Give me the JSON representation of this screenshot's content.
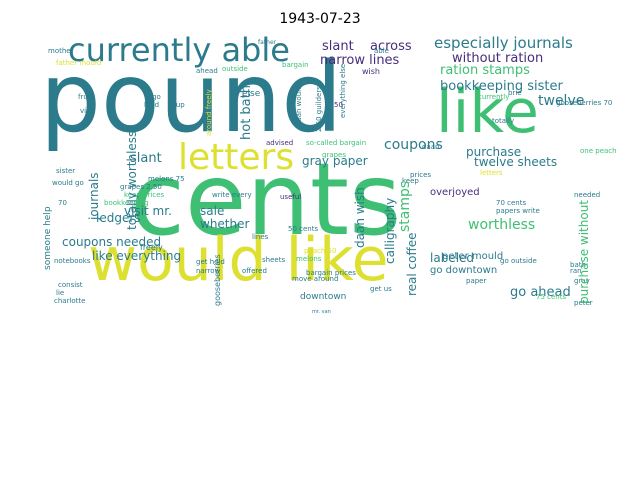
{
  "title": "1943-07-23",
  "palette": {
    "teal": "#2b7b8c",
    "green": "#3fbf74",
    "yellow": "#dde030",
    "purple": "#472d7b",
    "blue": "#3b528b",
    "lime": "#7ad151",
    "cyan": "#21918c",
    "olive": "#b5de2b"
  },
  "words": [
    {
      "text": "pound",
      "color": "#2b7b8c"
    },
    {
      "text": "cents",
      "color": "#3fbf74"
    },
    {
      "text": "would like",
      "color": "#dde030"
    },
    {
      "text": "like",
      "color": "#3fbf74"
    },
    {
      "text": "currently able",
      "color": "#2b7b8c"
    },
    {
      "text": "letters",
      "color": "#dde030"
    },
    {
      "text": "especially journals",
      "color": "#2b7b8c"
    },
    {
      "text": "without ration",
      "color": "#472d7b"
    },
    {
      "text": "ration stamps",
      "color": "#3fbf74"
    },
    {
      "text": "bookkeeping sister",
      "color": "#2b7b8c"
    },
    {
      "text": "slant",
      "color": "#472d7b"
    },
    {
      "text": "across",
      "color": "#472d7b"
    },
    {
      "text": "narrow lines",
      "color": "#472d7b"
    },
    {
      "text": "coupons",
      "color": "#2b7b8c"
    },
    {
      "text": "twelve",
      "color": "#2b7b8c"
    },
    {
      "text": "gray paper",
      "color": "#2b7b8c"
    },
    {
      "text": "twelve sheets",
      "color": "#2b7b8c"
    },
    {
      "text": "purchase",
      "color": "#2b7b8c"
    },
    {
      "text": "overjoyed",
      "color": "#472d7b"
    },
    {
      "text": "worthless",
      "color": "#3fbf74"
    },
    {
      "text": "labeled",
      "color": "#2b7b8c"
    },
    {
      "text": "go ahead",
      "color": "#2b7b8c"
    },
    {
      "text": "go downtown",
      "color": "#2b7b8c"
    },
    {
      "text": "peter mould",
      "color": "#2b7b8c"
    },
    {
      "text": "ledgers",
      "color": "#2b7b8c"
    },
    {
      "text": "visit mr.",
      "color": "#2b7b8c"
    },
    {
      "text": "slant",
      "color": "#2b7b8c"
    },
    {
      "text": "sale",
      "color": "#2b7b8c"
    },
    {
      "text": "whether",
      "color": "#2b7b8c"
    },
    {
      "text": "coupons needed",
      "color": "#2b7b8c"
    },
    {
      "text": "like everything",
      "color": "#2b7b8c"
    },
    {
      "text": "downtown",
      "color": "#2b7b8c"
    },
    {
      "text": "advised",
      "color": "#472d7b"
    },
    {
      "text": "so-called bargain",
      "color": "#3fbf74"
    },
    {
      "text": "grapes",
      "color": "#3fbf74"
    },
    {
      "text": "useful",
      "color": "#472d7b"
    },
    {
      "text": "50 cents",
      "color": "#2b7b8c"
    },
    {
      "text": "move around",
      "color": "#2b7b8c"
    },
    {
      "text": "melons",
      "color": "#3fbf74"
    },
    {
      "text": "bargain prices",
      "color": "#2b7b8c"
    },
    {
      "text": "fruit",
      "color": "#2b7b8c"
    },
    {
      "text": "visit",
      "color": "#2b7b8c"
    },
    {
      "text": "melons 75",
      "color": "#2b7b8c"
    },
    {
      "text": "grapes 2.50",
      "color": "#2b7b8c"
    },
    {
      "text": "keep prices",
      "color": "#3fbf74"
    },
    {
      "text": "bookkeeping",
      "color": "#3fbf74"
    },
    {
      "text": "freely",
      "color": "#2b7b8c"
    },
    {
      "text": "get hold",
      "color": "#2b7b8c"
    },
    {
      "text": "offered",
      "color": "#2b7b8c"
    },
    {
      "text": "narrow",
      "color": "#2b7b8c"
    },
    {
      "text": "write every",
      "color": "#2b7b8c"
    },
    {
      "text": "sheets",
      "color": "#2b7b8c"
    },
    {
      "text": "brie",
      "color": "#2b7b8c"
    },
    {
      "text": "totally",
      "color": "#2b7b8c"
    },
    {
      "text": "one peach",
      "color": "#3fbf74"
    },
    {
      "text": "needed",
      "color": "#2b7b8c"
    },
    {
      "text": "70 cents",
      "color": "#2b7b8c"
    },
    {
      "text": "papers write",
      "color": "#2b7b8c"
    },
    {
      "text": "go outside",
      "color": "#2b7b8c"
    },
    {
      "text": "bath",
      "color": "#2b7b8c"
    },
    {
      "text": "gray",
      "color": "#2b7b8c"
    },
    {
      "text": "peter",
      "color": "#2b7b8c"
    },
    {
      "text": "75 cents",
      "color": "#3fbf74"
    },
    {
      "text": "charlotte",
      "color": "#2b7b8c"
    },
    {
      "text": "notebooks",
      "color": "#2b7b8c"
    },
    {
      "text": "lie",
      "color": "#2b7b8c"
    },
    {
      "text": "would go",
      "color": "#2b7b8c"
    },
    {
      "text": "70",
      "color": "#2b7b8c"
    },
    {
      "text": "get us",
      "color": "#2b7b8c"
    },
    {
      "text": "peach 50",
      "color": "#dde030"
    },
    {
      "text": "ran",
      "color": "#2b7b8c"
    },
    {
      "text": "keep",
      "color": "#2b7b8c"
    },
    {
      "text": "letters",
      "color": "#dde030"
    },
    {
      "text": "gooseberries",
      "color": "#2b7b8c"
    },
    {
      "text": "gooseberries 70",
      "color": "#2b7b8c"
    },
    {
      "text": "hot bath",
      "color": "#2b7b8c"
    },
    {
      "text": "totally worthless",
      "color": "#2b7b8c"
    },
    {
      "text": "journals",
      "color": "#2b7b8c"
    },
    {
      "text": "daan wish",
      "color": "#2b7b8c"
    },
    {
      "text": "calligraphy",
      "color": "#2b7b8c"
    },
    {
      "text": "stamps",
      "color": "#3fbf74"
    },
    {
      "text": "real coffee",
      "color": "#2b7b8c"
    },
    {
      "text": "purchase without",
      "color": "#3fbf74"
    },
    {
      "text": "someone help",
      "color": "#2b7b8c"
    },
    {
      "text": "around freely",
      "color": "#dde030"
    },
    {
      "text": "daan would",
      "color": "#2b7b8c"
    },
    {
      "text": "2.50 guilders",
      "color": "#2b7b8c"
    },
    {
      "text": "everything else",
      "color": "#2b7b8c"
    },
    {
      "text": "cup",
      "color": "#2b7b8c"
    },
    {
      "text": "else",
      "color": "#2b7b8c"
    },
    {
      "text": "wish",
      "color": "#472d7b"
    },
    {
      "text": "outside",
      "color": "#3fbf74"
    },
    {
      "text": "ahead",
      "color": "#2b7b8c"
    },
    {
      "text": "father mould",
      "color": "#dde030"
    },
    {
      "text": "bargain",
      "color": "#3fbf74"
    },
    {
      "text": "go",
      "color": "#2b7b8c"
    },
    {
      "text": "daan",
      "color": "#2b7b8c"
    },
    {
      "text": "lines",
      "color": "#2b7b8c"
    },
    {
      "text": "prices",
      "color": "#2b7b8c"
    },
    {
      "text": "50",
      "color": "#472d7b"
    },
    {
      "text": "consist",
      "color": "#2b7b8c"
    },
    {
      "text": "father",
      "color": "#2b7b8c"
    },
    {
      "text": "currently",
      "color": "#3fbf74"
    },
    {
      "text": "paper",
      "color": "#2b7b8c"
    },
    {
      "text": "mr. van",
      "color": "#2b7b8c"
    },
    {
      "text": "sister",
      "color": "#2b7b8c"
    },
    {
      "text": "hold",
      "color": "#2b7b8c"
    },
    {
      "text": "able",
      "color": "#2b7b8c"
    },
    {
      "text": "mother",
      "color": "#2b7b8c"
    }
  ]
}
